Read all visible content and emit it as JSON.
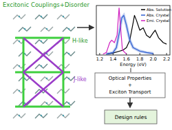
{
  "title": "Excitonic Couplings+Disorder",
  "labels": {
    "h_like": "H-like",
    "j_like": "J-like"
  },
  "chart_data": {
    "type": "line",
    "x_label": "Energy (eV)",
    "xlim": [
      1.15,
      2.25
    ],
    "ylim": [
      0,
      1
    ],
    "xticks": [
      1.2,
      1.4,
      1.6,
      {
        "value": 2,
        "label": "2.0"
      },
      1.8,
      2.2
    ],
    "tick_labels": "x",
    "legend": "upper right",
    "series": [
      {
        "name": "Abs. Solution",
        "color": "#000000",
        "x": [
          1.3,
          1.4,
          1.5,
          1.55,
          1.6,
          1.65,
          1.7,
          1.72,
          1.75,
          1.8,
          1.85,
          1.9,
          1.95,
          2.0,
          2.03,
          2.08,
          2.15,
          2.2
        ],
        "values": [
          0.02,
          0.04,
          0.08,
          0.1,
          0.15,
          0.3,
          0.65,
          0.8,
          0.7,
          0.5,
          0.55,
          0.4,
          0.35,
          0.45,
          0.5,
          0.35,
          0.25,
          0.22
        ]
      },
      {
        "name": "Abs. Crystal",
        "color": "#2f5fd0",
        "x": [
          1.3,
          1.4,
          1.45,
          1.5,
          1.53,
          1.56,
          1.6,
          1.65,
          1.7,
          1.8,
          1.9,
          2.0
        ],
        "values": [
          0.02,
          0.05,
          0.15,
          0.5,
          0.75,
          0.8,
          0.6,
          0.3,
          0.15,
          0.08,
          0.05,
          0.03
        ]
      },
      {
        "name": "Emi. Crystal",
        "color": "#d020c0",
        "x": [
          1.25,
          1.3,
          1.35,
          1.38,
          1.42,
          1.46,
          1.49,
          1.51,
          1.54,
          1.6
        ],
        "values": [
          0.02,
          0.05,
          0.25,
          0.3,
          0.25,
          0.4,
          0.95,
          0.6,
          0.1,
          0.02
        ]
      }
    ]
  },
  "boxes": {
    "properties": [
      "Optical Properties",
      "+",
      "Exciton Transport"
    ],
    "design": "Design rules"
  }
}
